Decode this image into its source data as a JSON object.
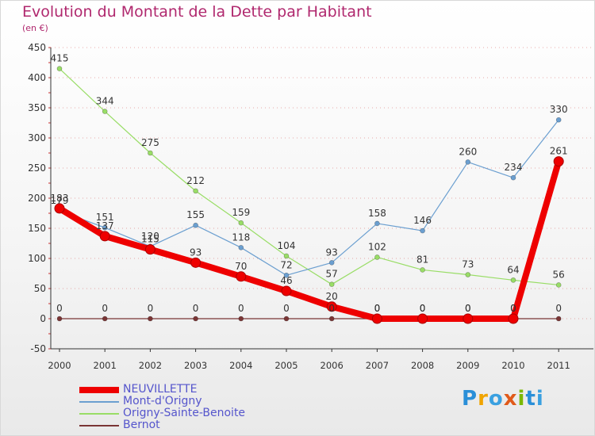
{
  "title": "Evolution du Montant de la Dette par Habitant",
  "unit": "(en €)",
  "logo": [
    "P",
    "r",
    "o",
    "x",
    "i",
    "t",
    "i"
  ],
  "colors": {
    "title": "#b0286e",
    "axis": "#333333",
    "grid": "#cc3333",
    "label": "#333333"
  },
  "chart_data": {
    "type": "line",
    "title": "Evolution du Montant de la Dette par Habitant",
    "ylabel": "(en €)",
    "xlabel": "",
    "categories": [
      "2000",
      "2001",
      "2002",
      "2003",
      "2004",
      "2005",
      "2006",
      "2007",
      "2008",
      "2009",
      "2010",
      "2011"
    ],
    "ylim": [
      -50,
      450
    ],
    "yticks": [
      -50,
      0,
      50,
      100,
      150,
      200,
      250,
      300,
      350,
      400,
      450
    ],
    "legend_position": "bottom-left",
    "series": [
      {
        "name": "NEUVILLETTE",
        "color": "#ee0000",
        "values": [
          183,
          137,
          115,
          93,
          70,
          46,
          20,
          0,
          0,
          0,
          0,
          261
        ],
        "labels": [
          "183",
          "137",
          "115",
          "93",
          "70",
          "46",
          "20",
          "0",
          "0",
          "0",
          "0",
          "261"
        ],
        "emphasis": true
      },
      {
        "name": "Mont-d'Origny",
        "color": "#6b9fd0",
        "values": [
          179,
          151,
          120,
          155,
          118,
          72,
          93,
          158,
          146,
          260,
          234,
          330
        ],
        "labels": [
          "179",
          "151",
          "120",
          "155",
          "118",
          "72",
          "93",
          "158",
          "146",
          "260",
          "234",
          "330"
        ],
        "emphasis": false
      },
      {
        "name": "Origny-Sainte-Benoite",
        "color": "#99dd66",
        "values": [
          415,
          344,
          275,
          212,
          159,
          104,
          57,
          102,
          81,
          73,
          64,
          56
        ],
        "labels": [
          "415",
          "344",
          "275",
          "212",
          "159",
          "104",
          "57",
          "102",
          "81",
          "73",
          "64",
          "56"
        ],
        "emphasis": false
      },
      {
        "name": "Bernot",
        "color": "#7a3535",
        "values": [
          0,
          0,
          0,
          0,
          0,
          0,
          0,
          0,
          0,
          0,
          0,
          0
        ],
        "labels": [
          "0",
          "0",
          "0",
          "0",
          "0",
          "0",
          "0",
          "0",
          "0",
          "0",
          "0",
          "0"
        ],
        "emphasis": false
      }
    ]
  }
}
